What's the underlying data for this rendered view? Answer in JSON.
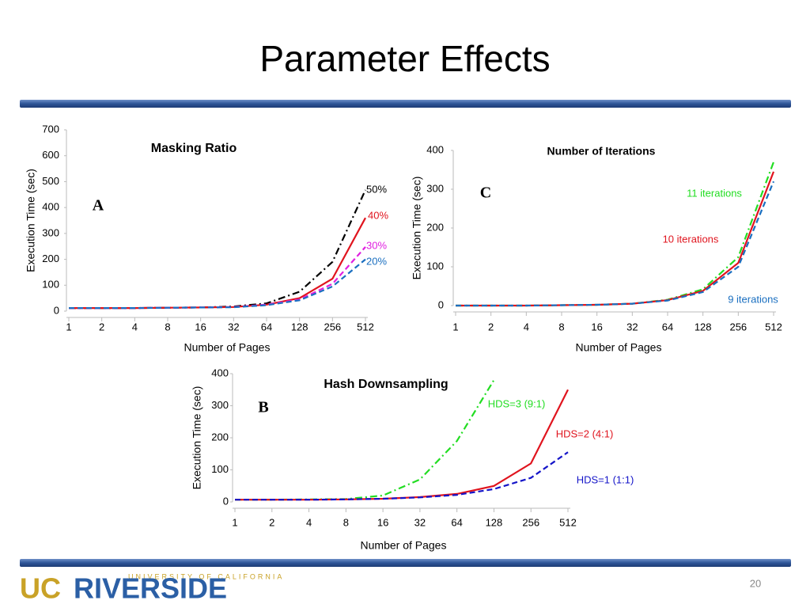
{
  "title": "Parameter Effects",
  "page_number": "20",
  "logo": {
    "top": "UNIVERSITY OF CALIFORNIA",
    "uc": "UC",
    "main": "RIVERSIDE"
  },
  "chart_data": [
    {
      "type": "line",
      "title": "Masking Ratio",
      "panel": "A",
      "x_label": "Number of Pages",
      "y_label": "Execution Time (sec)",
      "categories": [
        "1",
        "2",
        "4",
        "8",
        "16",
        "32",
        "64",
        "128",
        "256",
        "512"
      ],
      "ylim": [
        0,
        700
      ],
      "yticks": [
        0,
        100,
        200,
        300,
        400,
        500,
        600,
        700
      ],
      "series": [
        {
          "name": "50%",
          "color": "#000000",
          "style": "dash-dot",
          "values": [
            12,
            12,
            12,
            13,
            14,
            18,
            30,
            75,
            190,
            468
          ]
        },
        {
          "name": "40%",
          "color": "#e0141e",
          "style": "solid",
          "values": [
            12,
            12,
            12,
            13,
            14,
            16,
            25,
            50,
            125,
            360
          ]
        },
        {
          "name": "30%",
          "color": "#e020e0",
          "style": "dashed",
          "values": [
            12,
            12,
            12,
            13,
            14,
            16,
            25,
            45,
            105,
            248
          ]
        },
        {
          "name": "20%",
          "color": "#1a6fc0",
          "style": "dashed",
          "values": [
            12,
            12,
            12,
            13,
            14,
            15,
            23,
            42,
            95,
            200
          ]
        }
      ]
    },
    {
      "type": "line",
      "title": "Number of Iterations",
      "panel": "C",
      "x_label": "Number of Pages",
      "y_label": "Execution Time (sec)",
      "categories": [
        "1",
        "2",
        "4",
        "8",
        "16",
        "32",
        "64",
        "128",
        "256",
        "512"
      ],
      "ylim": [
        0,
        400
      ],
      "yticks": [
        0,
        100,
        200,
        300,
        400
      ],
      "series": [
        {
          "name": "11 iterations",
          "color": "#22dd22",
          "style": "dash-dot",
          "values": [
            0,
            0,
            0,
            1,
            2,
            5,
            15,
            42,
            125,
            370
          ]
        },
        {
          "name": "10 iterations",
          "color": "#e0141e",
          "style": "solid",
          "values": [
            0,
            0,
            0,
            1,
            2,
            5,
            14,
            38,
            110,
            345
          ]
        },
        {
          "name": "9 iterations",
          "color": "#1a6fc0",
          "style": "dashed",
          "values": [
            0,
            0,
            0,
            1,
            2,
            5,
            13,
            35,
            100,
            320
          ]
        }
      ]
    },
    {
      "type": "line",
      "title": "Hash Downsampling",
      "panel": "B",
      "x_label": "Number of Pages",
      "y_label": "Execution Time (sec)",
      "categories": [
        "1",
        "2",
        "4",
        "8",
        "16",
        "32",
        "64",
        "128",
        "256",
        "512"
      ],
      "ylim": [
        0,
        400
      ],
      "yticks": [
        0,
        100,
        200,
        300,
        400
      ],
      "series": [
        {
          "name": "HDS=3 (9:1)",
          "color": "#22dd22",
          "style": "dash-dot",
          "values": [
            7,
            7,
            8,
            9,
            20,
            70,
            190,
            380,
            null,
            null
          ]
        },
        {
          "name": "HDS=2 (4:1)",
          "color": "#e0141e",
          "style": "solid",
          "values": [
            7,
            7,
            7,
            8,
            10,
            15,
            25,
            50,
            120,
            350
          ]
        },
        {
          "name": "HDS=1 (1:1)",
          "color": "#1414c8",
          "style": "dashed",
          "values": [
            7,
            7,
            7,
            8,
            10,
            14,
            22,
            40,
            75,
            155
          ]
        }
      ]
    }
  ]
}
